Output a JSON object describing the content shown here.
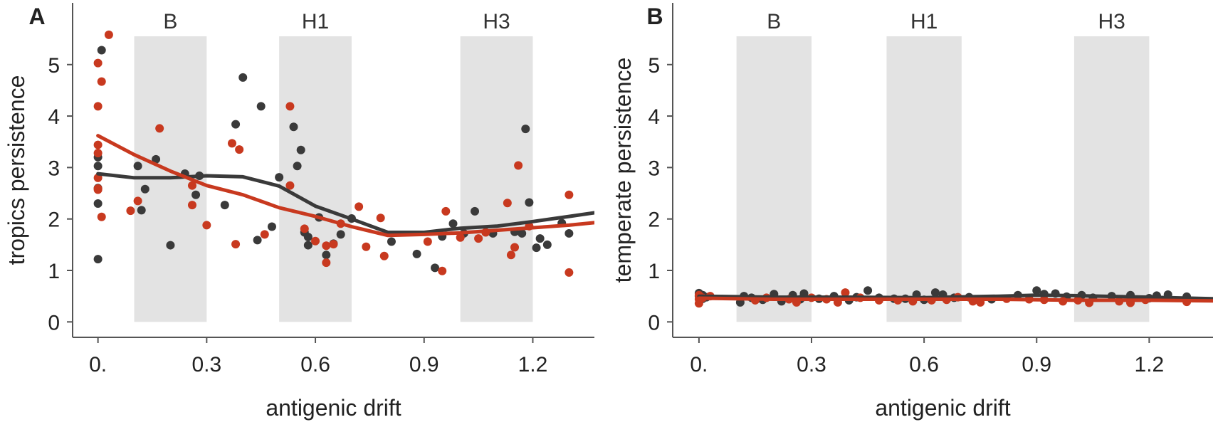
{
  "colors": {
    "dark_series": "#3a3a3a",
    "red_series": "#c8391f",
    "band_fill": "#e3e3e3",
    "axis": "#555555"
  },
  "chart_data": [
    {
      "type": "scatter",
      "panel": "A",
      "xlabel": "antigenic drift",
      "ylabel": "tropics persistence",
      "xlim": [
        -0.07,
        1.37
      ],
      "ylim": [
        -0.3,
        6.2
      ],
      "x_ticks": [
        {
          "value": 0.0,
          "label": "0."
        },
        {
          "value": 0.3,
          "label": "0.3"
        },
        {
          "value": 0.6,
          "label": "0.6"
        },
        {
          "value": 0.9,
          "label": "0.9"
        },
        {
          "value": 1.2,
          "label": "1.2"
        }
      ],
      "y_ticks": [
        {
          "value": 0,
          "label": "0"
        },
        {
          "value": 1,
          "label": "1"
        },
        {
          "value": 2,
          "label": "2"
        },
        {
          "value": 3,
          "label": "3"
        },
        {
          "value": 4,
          "label": "4"
        },
        {
          "value": 5,
          "label": "5"
        }
      ],
      "bands": [
        {
          "label": "B",
          "x0": 0.1,
          "x1": 0.3
        },
        {
          "label": "H1",
          "x0": 0.5,
          "x1": 0.7
        },
        {
          "label": "H3",
          "x0": 1.0,
          "x1": 1.2
        }
      ],
      "band_top": 5.55,
      "series": [
        {
          "color": "#3a3a3a",
          "points": [
            [
              0.0,
              1.22
            ],
            [
              0.0,
              2.3
            ],
            [
              0.0,
              2.6
            ],
            [
              0.0,
              3.03
            ],
            [
              0.0,
              3.2
            ],
            [
              0.01,
              5.28
            ],
            [
              0.11,
              3.03
            ],
            [
              0.12,
              2.17
            ],
            [
              0.13,
              2.58
            ],
            [
              0.16,
              3.16
            ],
            [
              0.2,
              1.49
            ],
            [
              0.24,
              2.88
            ],
            [
              0.27,
              2.47
            ],
            [
              0.28,
              2.84
            ],
            [
              0.35,
              2.27
            ],
            [
              0.38,
              3.84
            ],
            [
              0.4,
              4.75
            ],
            [
              0.44,
              1.59
            ],
            [
              0.45,
              4.19
            ],
            [
              0.48,
              1.85
            ],
            [
              0.5,
              2.81
            ],
            [
              0.54,
              3.79
            ],
            [
              0.55,
              3.03
            ],
            [
              0.56,
              3.34
            ],
            [
              0.57,
              1.74
            ],
            [
              0.58,
              1.65
            ],
            [
              0.58,
              1.49
            ],
            [
              0.61,
              2.03
            ],
            [
              0.63,
              1.3
            ],
            [
              0.65,
              1.52
            ],
            [
              0.67,
              1.7
            ],
            [
              0.7,
              2.01
            ],
            [
              0.81,
              1.56
            ],
            [
              0.88,
              1.32
            ],
            [
              0.93,
              1.05
            ],
            [
              0.95,
              1.66
            ],
            [
              0.98,
              1.91
            ],
            [
              1.01,
              1.72
            ],
            [
              1.04,
              2.15
            ],
            [
              1.09,
              1.72
            ],
            [
              1.15,
              1.75
            ],
            [
              1.17,
              1.72
            ],
            [
              1.18,
              3.75
            ],
            [
              1.19,
              2.32
            ],
            [
              1.21,
              1.44
            ],
            [
              1.22,
              1.62
            ],
            [
              1.24,
              1.5
            ],
            [
              1.28,
              1.92
            ],
            [
              1.3,
              1.72
            ]
          ],
          "trend": [
            [
              0.0,
              2.88
            ],
            [
              0.1,
              2.8
            ],
            [
              0.2,
              2.8
            ],
            [
              0.3,
              2.84
            ],
            [
              0.4,
              2.82
            ],
            [
              0.5,
              2.64
            ],
            [
              0.6,
              2.25
            ],
            [
              0.7,
              2.0
            ],
            [
              0.8,
              1.74
            ],
            [
              0.9,
              1.74
            ],
            [
              1.0,
              1.82
            ],
            [
              1.1,
              1.86
            ],
            [
              1.2,
              1.95
            ],
            [
              1.3,
              2.05
            ],
            [
              1.37,
              2.12
            ]
          ]
        },
        {
          "color": "#c8391f",
          "points": [
            [
              0.0,
              5.03
            ],
            [
              0.0,
              4.19
            ],
            [
              0.0,
              3.44
            ],
            [
              0.0,
              3.28
            ],
            [
              0.0,
              2.8
            ],
            [
              0.0,
              2.59
            ],
            [
              0.0,
              2.57
            ],
            [
              0.01,
              4.67
            ],
            [
              0.01,
              2.04
            ],
            [
              0.03,
              5.58
            ],
            [
              0.09,
              2.16
            ],
            [
              0.11,
              2.35
            ],
            [
              0.17,
              3.76
            ],
            [
              0.26,
              2.65
            ],
            [
              0.26,
              2.27
            ],
            [
              0.3,
              1.88
            ],
            [
              0.37,
              3.47
            ],
            [
              0.38,
              1.51
            ],
            [
              0.39,
              3.35
            ],
            [
              0.46,
              1.7
            ],
            [
              0.53,
              4.19
            ],
            [
              0.53,
              2.65
            ],
            [
              0.57,
              1.81
            ],
            [
              0.6,
              1.57
            ],
            [
              0.63,
              1.48
            ],
            [
              0.63,
              1.15
            ],
            [
              0.65,
              1.51
            ],
            [
              0.67,
              1.91
            ],
            [
              0.72,
              2.24
            ],
            [
              0.74,
              1.46
            ],
            [
              0.78,
              2.02
            ],
            [
              0.79,
              1.28
            ],
            [
              0.91,
              1.56
            ],
            [
              0.95,
              0.99
            ],
            [
              0.96,
              2.15
            ],
            [
              1.0,
              1.64
            ],
            [
              1.05,
              1.62
            ],
            [
              1.07,
              1.74
            ],
            [
              1.13,
              2.31
            ],
            [
              1.14,
              1.3
            ],
            [
              1.15,
              1.45
            ],
            [
              1.16,
              3.04
            ],
            [
              1.19,
              1.86
            ],
            [
              1.3,
              2.47
            ],
            [
              1.3,
              0.96
            ]
          ],
          "trend": [
            [
              0.0,
              3.62
            ],
            [
              0.1,
              3.25
            ],
            [
              0.2,
              2.93
            ],
            [
              0.3,
              2.65
            ],
            [
              0.4,
              2.47
            ],
            [
              0.5,
              2.22
            ],
            [
              0.6,
              2.05
            ],
            [
              0.7,
              1.85
            ],
            [
              0.8,
              1.68
            ],
            [
              0.9,
              1.7
            ],
            [
              1.0,
              1.73
            ],
            [
              1.1,
              1.78
            ],
            [
              1.2,
              1.83
            ],
            [
              1.3,
              1.88
            ],
            [
              1.37,
              1.93
            ]
          ]
        }
      ]
    },
    {
      "type": "scatter",
      "panel": "B",
      "xlabel": "antigenic drift",
      "ylabel": "temperate persistence",
      "xlim": [
        -0.07,
        1.37
      ],
      "ylim": [
        -0.3,
        6.2
      ],
      "x_ticks": [
        {
          "value": 0.0,
          "label": "0."
        },
        {
          "value": 0.3,
          "label": "0.3"
        },
        {
          "value": 0.6,
          "label": "0.6"
        },
        {
          "value": 0.9,
          "label": "0.9"
        },
        {
          "value": 1.2,
          "label": "1.2"
        }
      ],
      "y_ticks": [
        {
          "value": 0,
          "label": "0"
        },
        {
          "value": 1,
          "label": "1"
        },
        {
          "value": 2,
          "label": "2"
        },
        {
          "value": 3,
          "label": "3"
        },
        {
          "value": 4,
          "label": "4"
        },
        {
          "value": 5,
          "label": "5"
        }
      ],
      "bands": [
        {
          "label": "B",
          "x0": 0.1,
          "x1": 0.3
        },
        {
          "label": "H1",
          "x0": 0.5,
          "x1": 0.7
        },
        {
          "label": "H3",
          "x0": 1.0,
          "x1": 1.2
        }
      ],
      "band_top": 5.55,
      "series": [
        {
          "color": "#3a3a3a",
          "points": [
            [
              0.0,
              0.56
            ],
            [
              0.0,
              0.5
            ],
            [
              0.01,
              0.45
            ],
            [
              0.01,
              0.52
            ],
            [
              0.02,
              0.48
            ],
            [
              0.11,
              0.38
            ],
            [
              0.12,
              0.5
            ],
            [
              0.14,
              0.47
            ],
            [
              0.17,
              0.43
            ],
            [
              0.2,
              0.54
            ],
            [
              0.22,
              0.4
            ],
            [
              0.25,
              0.52
            ],
            [
              0.27,
              0.44
            ],
            [
              0.28,
              0.55
            ],
            [
              0.32,
              0.45
            ],
            [
              0.36,
              0.5
            ],
            [
              0.4,
              0.42
            ],
            [
              0.42,
              0.48
            ],
            [
              0.45,
              0.61
            ],
            [
              0.48,
              0.47
            ],
            [
              0.52,
              0.45
            ],
            [
              0.55,
              0.45
            ],
            [
              0.58,
              0.53
            ],
            [
              0.6,
              0.43
            ],
            [
              0.63,
              0.57
            ],
            [
              0.65,
              0.53
            ],
            [
              0.68,
              0.47
            ],
            [
              0.72,
              0.48
            ],
            [
              0.78,
              0.44
            ],
            [
              0.85,
              0.52
            ],
            [
              0.9,
              0.61
            ],
            [
              0.92,
              0.54
            ],
            [
              0.95,
              0.55
            ],
            [
              0.98,
              0.49
            ],
            [
              1.02,
              0.52
            ],
            [
              1.05,
              0.47
            ],
            [
              1.1,
              0.5
            ],
            [
              1.15,
              0.52
            ],
            [
              1.2,
              0.46
            ],
            [
              1.22,
              0.51
            ],
            [
              1.25,
              0.53
            ],
            [
              1.3,
              0.49
            ]
          ],
          "trend": [
            [
              0.0,
              0.5
            ],
            [
              0.2,
              0.48
            ],
            [
              0.4,
              0.48
            ],
            [
              0.6,
              0.47
            ],
            [
              0.8,
              0.5
            ],
            [
              0.9,
              0.52
            ],
            [
              1.0,
              0.51
            ],
            [
              1.2,
              0.48
            ],
            [
              1.37,
              0.45
            ]
          ]
        },
        {
          "color": "#c8391f",
          "points": [
            [
              0.0,
              0.36
            ],
            [
              0.0,
              0.44
            ],
            [
              0.0,
              0.52
            ],
            [
              0.01,
              0.47
            ],
            [
              0.03,
              0.5
            ],
            [
              0.15,
              0.42
            ],
            [
              0.18,
              0.47
            ],
            [
              0.24,
              0.44
            ],
            [
              0.26,
              0.38
            ],
            [
              0.3,
              0.47
            ],
            [
              0.34,
              0.44
            ],
            [
              0.37,
              0.38
            ],
            [
              0.39,
              0.57
            ],
            [
              0.43,
              0.47
            ],
            [
              0.48,
              0.42
            ],
            [
              0.53,
              0.42
            ],
            [
              0.57,
              0.4
            ],
            [
              0.62,
              0.42
            ],
            [
              0.66,
              0.43
            ],
            [
              0.69,
              0.48
            ],
            [
              0.73,
              0.4
            ],
            [
              0.75,
              0.38
            ],
            [
              0.82,
              0.45
            ],
            [
              0.88,
              0.44
            ],
            [
              0.92,
              0.43
            ],
            [
              0.97,
              0.4
            ],
            [
              1.01,
              0.42
            ],
            [
              1.04,
              0.37
            ],
            [
              1.12,
              0.4
            ],
            [
              1.15,
              0.37
            ],
            [
              1.19,
              0.43
            ],
            [
              1.3,
              0.39
            ]
          ],
          "trend": [
            [
              0.0,
              0.46
            ],
            [
              0.2,
              0.44
            ],
            [
              0.4,
              0.44
            ],
            [
              0.6,
              0.44
            ],
            [
              0.8,
              0.44
            ],
            [
              1.0,
              0.42
            ],
            [
              1.2,
              0.42
            ],
            [
              1.37,
              0.41
            ]
          ]
        }
      ]
    }
  ]
}
